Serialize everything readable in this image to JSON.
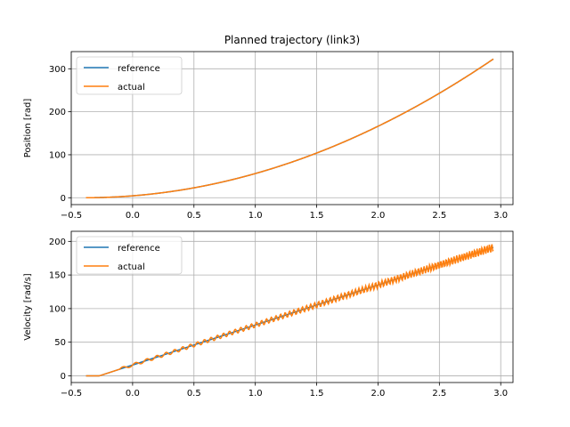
{
  "title": "Planned trajectory (link3)",
  "chart_data": [
    {
      "type": "line",
      "ylabel": "Position [rad]",
      "xlim": [
        -0.5,
        3.1
      ],
      "ylim": [
        -16,
        340
      ],
      "xticks": [
        -0.5,
        0.0,
        0.5,
        1.0,
        1.5,
        2.0,
        2.5,
        3.0
      ],
      "xtick_labels": [
        "−0.5",
        "0.0",
        "0.5",
        "1.0",
        "1.5",
        "2.0",
        "2.5",
        "3.0"
      ],
      "yticks": [
        0,
        100,
        200,
        300
      ],
      "ytick_labels": [
        "0",
        "100",
        "200",
        "300"
      ],
      "grid": true,
      "legend": "upper-left",
      "series": [
        {
          "name": "reference",
          "color": "#1f77b4",
          "kind": "position"
        },
        {
          "name": "actual",
          "color": "#ff7f0e",
          "kind": "position"
        }
      ]
    },
    {
      "type": "line",
      "ylabel": "Velocity [rad/s]",
      "xlim": [
        -0.5,
        3.1
      ],
      "ylim": [
        -10,
        215
      ],
      "xticks": [
        -0.5,
        0.0,
        0.5,
        1.0,
        1.5,
        2.0,
        2.5,
        3.0
      ],
      "xtick_labels": [
        "−0.5",
        "0.0",
        "0.5",
        "1.0",
        "1.5",
        "2.0",
        "2.5",
        "3.0"
      ],
      "yticks": [
        0,
        50,
        100,
        150,
        200
      ],
      "ytick_labels": [
        "0",
        "50",
        "100",
        "150",
        "200"
      ],
      "grid": true,
      "legend": "upper-left",
      "series": [
        {
          "name": "reference",
          "color": "#1f77b4",
          "kind": "velocity"
        },
        {
          "name": "actual",
          "color": "#ff7f0e",
          "kind": "velocity-oscillating"
        }
      ]
    }
  ],
  "x_range": [
    -0.38,
    2.94
  ]
}
